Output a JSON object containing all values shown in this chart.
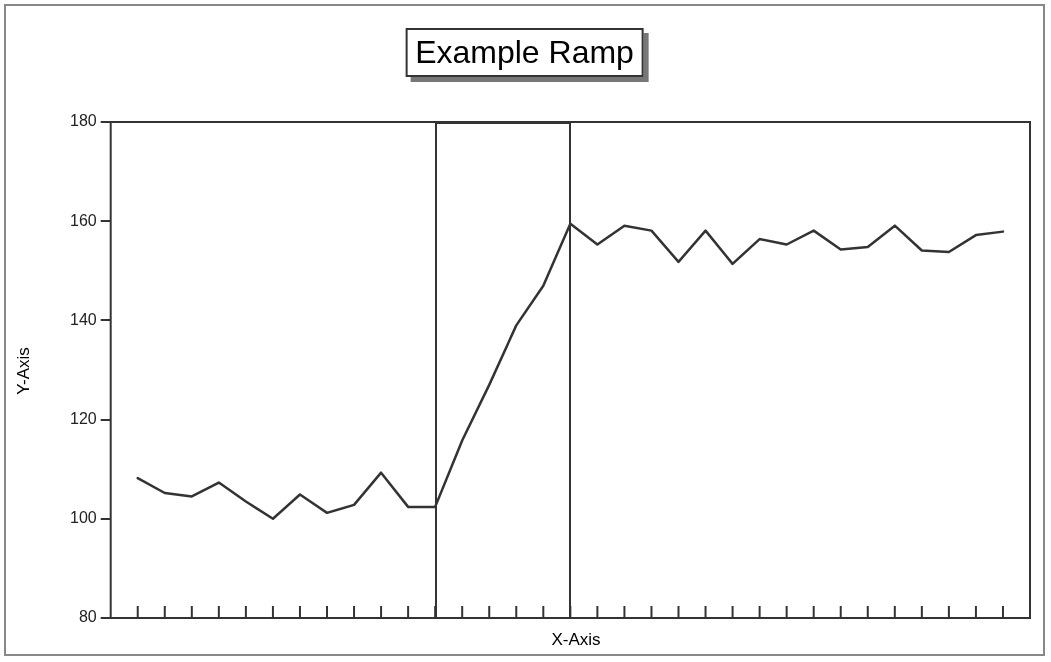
{
  "chart_data": {
    "type": "line",
    "title": "Example Ramp",
    "xlabel": "X-Axis",
    "ylabel": "Y-Axis",
    "categories": [
      null,
      null,
      null,
      null,
      null,
      null,
      null,
      null,
      null,
      null,
      null,
      null,
      null,
      null,
      null,
      null,
      null,
      null,
      null,
      null,
      null,
      null,
      null,
      null,
      null,
      null,
      null,
      null,
      null,
      null,
      null,
      null,
      null
    ],
    "series": [
      {
        "color": "#333333",
        "values": [
          108.2,
          105.2,
          104.5,
          107.3,
          103.5,
          100,
          104.9,
          101.2,
          102.8,
          109.3,
          102.4,
          102.4,
          115.8,
          127,
          139,
          147,
          159.5,
          155.3,
          159.1,
          158.1,
          151.8,
          158.1,
          151.4,
          156.4,
          155.3,
          158.1,
          154.3,
          154.8,
          159.1,
          154.1,
          153.8,
          157.2,
          157.9
        ]
      }
    ],
    "ylim": [
      80,
      180
    ],
    "yticks": [
      80,
      100,
      120,
      140,
      160,
      180
    ],
    "tick_labels": "y",
    "grid": false,
    "legend": false,
    "marker": "none",
    "line_style": "solid"
  }
}
